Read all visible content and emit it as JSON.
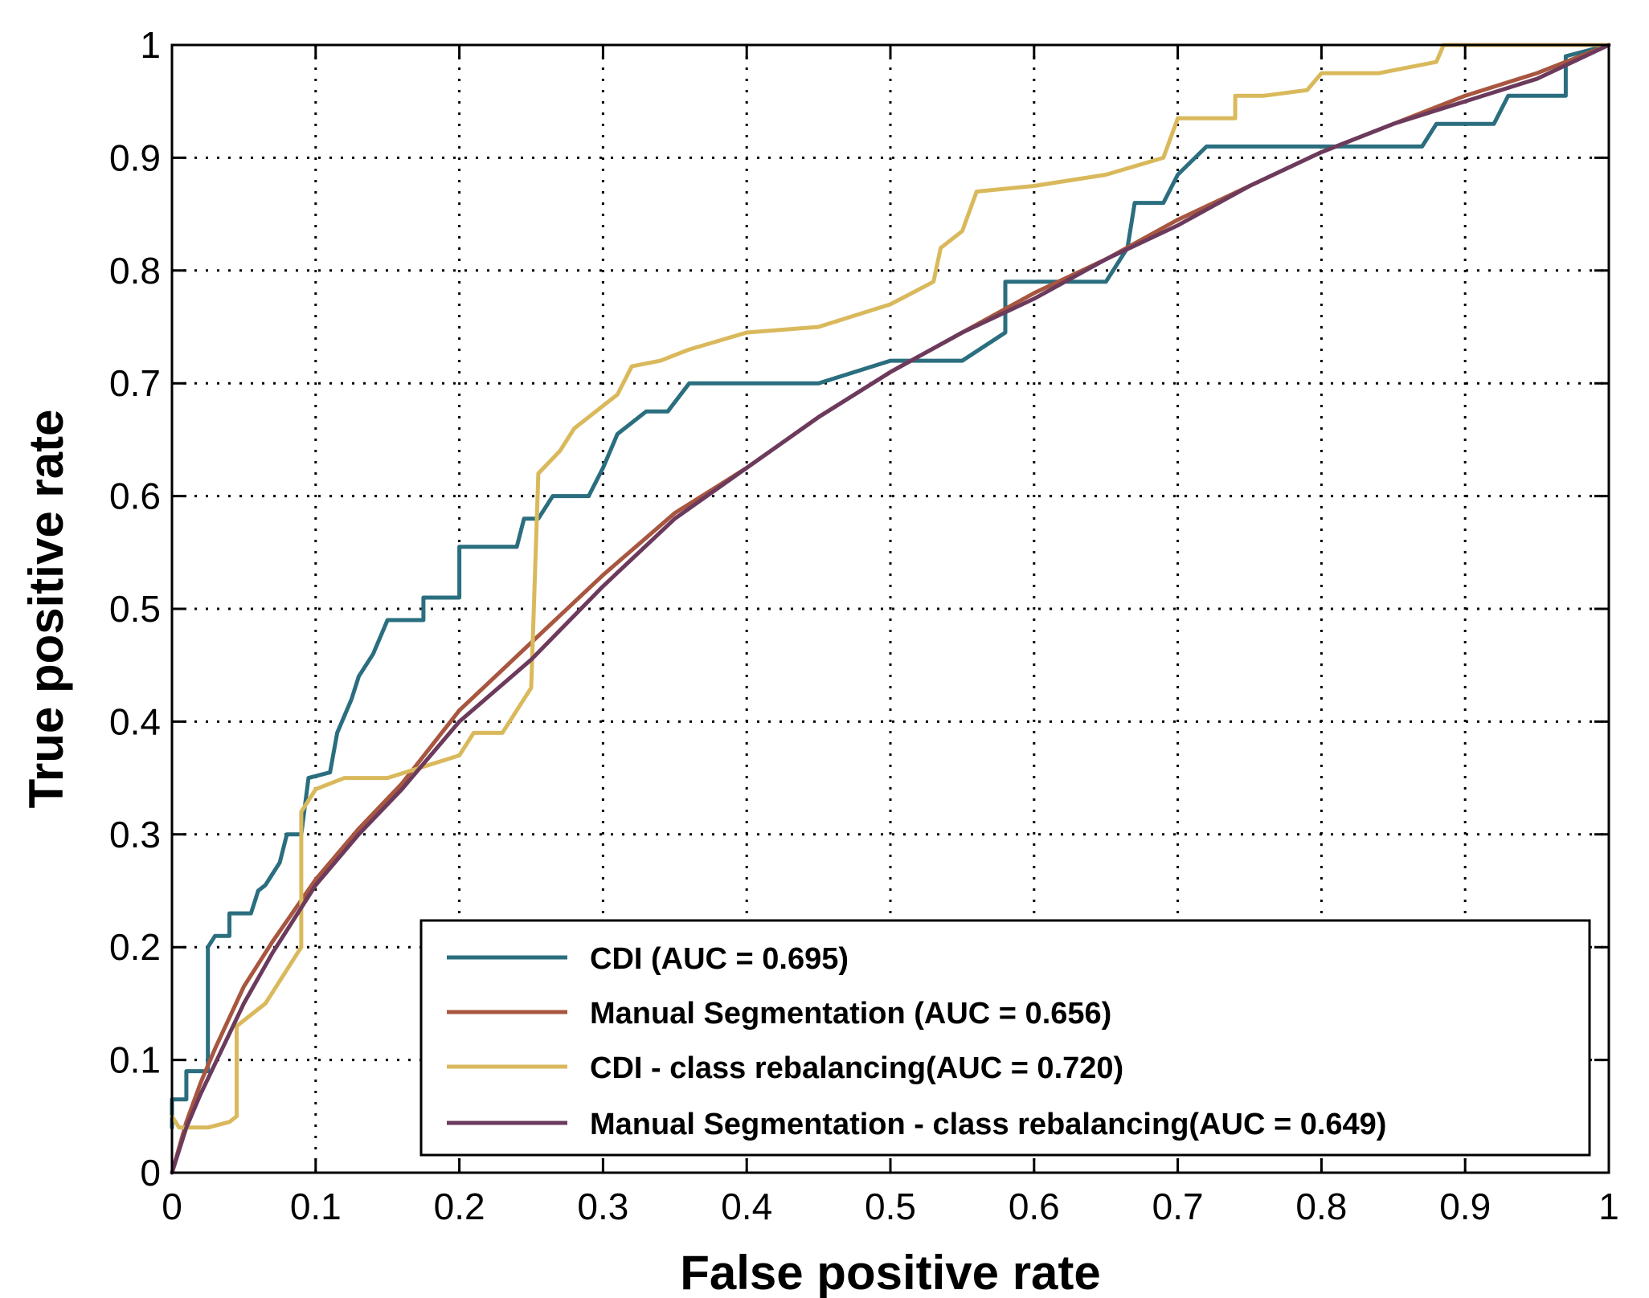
{
  "chart_data": {
    "type": "line",
    "title": "",
    "xlabel": "False positive rate",
    "ylabel": "True positive rate",
    "xlim": [
      0,
      1
    ],
    "ylim": [
      0,
      1
    ],
    "grid": true,
    "legend_position": "bottom-right",
    "x_ticks": [
      "0",
      "0.1",
      "0.2",
      "0.3",
      "0.4",
      "0.5",
      "0.6",
      "0.7",
      "0.8",
      "0.9",
      "1"
    ],
    "y_ticks": [
      "0",
      "0.1",
      "0.2",
      "0.3",
      "0.4",
      "0.5",
      "0.6",
      "0.7",
      "0.8",
      "0.9",
      "1"
    ],
    "series": [
      {
        "name": "CDI (AUC = 0.695)",
        "color": "#2a6e7f",
        "points": [
          [
            0,
            0.04
          ],
          [
            0,
            0.065
          ],
          [
            0.01,
            0.065
          ],
          [
            0.01,
            0.09
          ],
          [
            0.025,
            0.09
          ],
          [
            0.025,
            0.2
          ],
          [
            0.03,
            0.21
          ],
          [
            0.04,
            0.21
          ],
          [
            0.04,
            0.23
          ],
          [
            0.055,
            0.23
          ],
          [
            0.06,
            0.25
          ],
          [
            0.065,
            0.255
          ],
          [
            0.07,
            0.265
          ],
          [
            0.075,
            0.275
          ],
          [
            0.08,
            0.3
          ],
          [
            0.09,
            0.3
          ],
          [
            0.095,
            0.35
          ],
          [
            0.11,
            0.355
          ],
          [
            0.115,
            0.39
          ],
          [
            0.125,
            0.42
          ],
          [
            0.13,
            0.44
          ],
          [
            0.14,
            0.46
          ],
          [
            0.15,
            0.49
          ],
          [
            0.175,
            0.49
          ],
          [
            0.175,
            0.51
          ],
          [
            0.2,
            0.51
          ],
          [
            0.2,
            0.555
          ],
          [
            0.24,
            0.555
          ],
          [
            0.245,
            0.58
          ],
          [
            0.255,
            0.58
          ],
          [
            0.265,
            0.6
          ],
          [
            0.29,
            0.6
          ],
          [
            0.3,
            0.625
          ],
          [
            0.31,
            0.655
          ],
          [
            0.33,
            0.675
          ],
          [
            0.345,
            0.675
          ],
          [
            0.36,
            0.7
          ],
          [
            0.45,
            0.7
          ],
          [
            0.5,
            0.72
          ],
          [
            0.55,
            0.72
          ],
          [
            0.58,
            0.745
          ],
          [
            0.58,
            0.79
          ],
          [
            0.61,
            0.79
          ],
          [
            0.62,
            0.79
          ],
          [
            0.65,
            0.79
          ],
          [
            0.665,
            0.82
          ],
          [
            0.67,
            0.86
          ],
          [
            0.69,
            0.86
          ],
          [
            0.7,
            0.885
          ],
          [
            0.72,
            0.91
          ],
          [
            0.87,
            0.91
          ],
          [
            0.88,
            0.93
          ],
          [
            0.92,
            0.93
          ],
          [
            0.93,
            0.955
          ],
          [
            0.97,
            0.955
          ],
          [
            0.97,
            0.99
          ],
          [
            1,
            1
          ]
        ]
      },
      {
        "name": "Manual Segmentation (AUC = 0.656)",
        "color": "#a8563f",
        "points": [
          [
            0,
            0
          ],
          [
            0.01,
            0.045
          ],
          [
            0.02,
            0.08
          ],
          [
            0.03,
            0.11
          ],
          [
            0.05,
            0.165
          ],
          [
            0.07,
            0.205
          ],
          [
            0.1,
            0.26
          ],
          [
            0.13,
            0.305
          ],
          [
            0.16,
            0.345
          ],
          [
            0.2,
            0.41
          ],
          [
            0.25,
            0.47
          ],
          [
            0.3,
            0.53
          ],
          [
            0.35,
            0.585
          ],
          [
            0.4,
            0.625
          ],
          [
            0.45,
            0.67
          ],
          [
            0.5,
            0.71
          ],
          [
            0.55,
            0.745
          ],
          [
            0.6,
            0.78
          ],
          [
            0.65,
            0.81
          ],
          [
            0.7,
            0.845
          ],
          [
            0.75,
            0.875
          ],
          [
            0.8,
            0.905
          ],
          [
            0.85,
            0.93
          ],
          [
            0.9,
            0.955
          ],
          [
            0.95,
            0.975
          ],
          [
            1,
            1
          ]
        ]
      },
      {
        "name": "CDI - class rebalancing(AUC = 0.720)",
        "color": "#d9b95c",
        "points": [
          [
            0,
            0.05
          ],
          [
            0.005,
            0.04
          ],
          [
            0.025,
            0.04
          ],
          [
            0.04,
            0.045
          ],
          [
            0.045,
            0.05
          ],
          [
            0.045,
            0.13
          ],
          [
            0.06,
            0.145
          ],
          [
            0.065,
            0.15
          ],
          [
            0.07,
            0.16
          ],
          [
            0.08,
            0.18
          ],
          [
            0.09,
            0.2
          ],
          [
            0.09,
            0.32
          ],
          [
            0.1,
            0.34
          ],
          [
            0.12,
            0.35
          ],
          [
            0.15,
            0.35
          ],
          [
            0.2,
            0.37
          ],
          [
            0.21,
            0.39
          ],
          [
            0.23,
            0.39
          ],
          [
            0.25,
            0.43
          ],
          [
            0.255,
            0.62
          ],
          [
            0.27,
            0.64
          ],
          [
            0.28,
            0.66
          ],
          [
            0.29,
            0.67
          ],
          [
            0.31,
            0.69
          ],
          [
            0.32,
            0.715
          ],
          [
            0.34,
            0.72
          ],
          [
            0.36,
            0.73
          ],
          [
            0.4,
            0.745
          ],
          [
            0.45,
            0.75
          ],
          [
            0.5,
            0.77
          ],
          [
            0.53,
            0.79
          ],
          [
            0.535,
            0.82
          ],
          [
            0.55,
            0.835
          ],
          [
            0.56,
            0.87
          ],
          [
            0.6,
            0.875
          ],
          [
            0.65,
            0.885
          ],
          [
            0.69,
            0.9
          ],
          [
            0.7,
            0.935
          ],
          [
            0.74,
            0.935
          ],
          [
            0.74,
            0.955
          ],
          [
            0.76,
            0.955
          ],
          [
            0.79,
            0.96
          ],
          [
            0.8,
            0.975
          ],
          [
            0.84,
            0.975
          ],
          [
            0.86,
            0.98
          ],
          [
            0.88,
            0.985
          ],
          [
            0.885,
            1
          ],
          [
            1,
            1
          ]
        ]
      },
      {
        "name": "Manual Segmentation - class rebalancing(AUC = 0.649)",
        "color": "#6c3a5c",
        "points": [
          [
            0,
            0
          ],
          [
            0.01,
            0.04
          ],
          [
            0.02,
            0.07
          ],
          [
            0.035,
            0.11
          ],
          [
            0.05,
            0.15
          ],
          [
            0.07,
            0.195
          ],
          [
            0.1,
            0.255
          ],
          [
            0.13,
            0.3
          ],
          [
            0.16,
            0.34
          ],
          [
            0.2,
            0.4
          ],
          [
            0.25,
            0.455
          ],
          [
            0.3,
            0.52
          ],
          [
            0.35,
            0.58
          ],
          [
            0.4,
            0.625
          ],
          [
            0.45,
            0.67
          ],
          [
            0.5,
            0.71
          ],
          [
            0.55,
            0.745
          ],
          [
            0.6,
            0.775
          ],
          [
            0.65,
            0.81
          ],
          [
            0.7,
            0.84
          ],
          [
            0.75,
            0.875
          ],
          [
            0.8,
            0.905
          ],
          [
            0.85,
            0.93
          ],
          [
            0.9,
            0.95
          ],
          [
            0.95,
            0.97
          ],
          [
            1,
            1
          ]
        ]
      }
    ]
  }
}
